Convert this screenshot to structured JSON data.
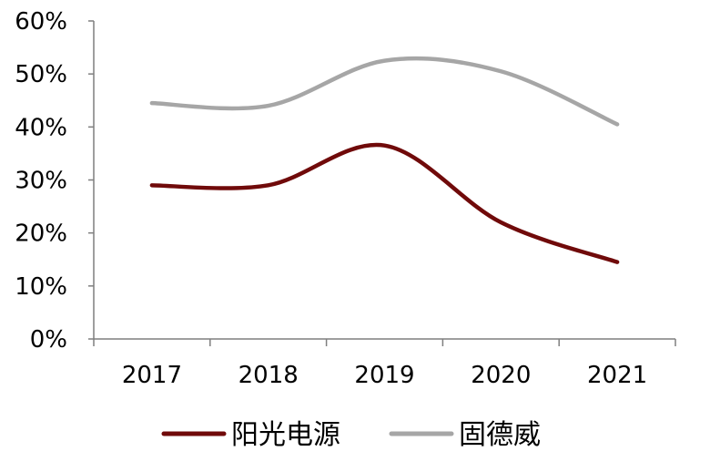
{
  "chart_data": {
    "type": "line",
    "categories": [
      "2017",
      "2018",
      "2019",
      "2020",
      "2021"
    ],
    "series": [
      {
        "name": "阳光电源",
        "color": "#700a0a",
        "values": [
          29,
          29,
          36.5,
          22,
          14.5
        ]
      },
      {
        "name": "固德威",
        "color": "#a6a6a6",
        "values": [
          44.5,
          44,
          52.5,
          50.5,
          40.5
        ]
      }
    ],
    "ylim": [
      0,
      60
    ],
    "yticks": [
      "0%",
      "10%",
      "20%",
      "30%",
      "40%",
      "50%",
      "60%"
    ],
    "grid": false,
    "legend_position": "bottom"
  }
}
